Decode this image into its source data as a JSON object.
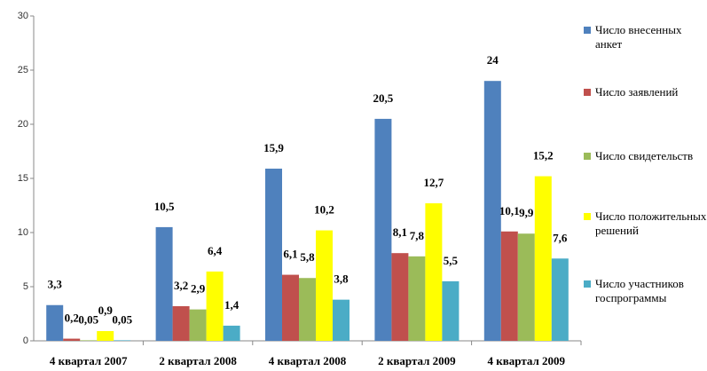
{
  "chart_data": {
    "type": "bar",
    "categories": [
      "4 квартал 2007",
      "2 квартал 2008",
      "4 квартал 2008",
      "2 квартал 2009",
      "4 квартал 2009"
    ],
    "series": [
      {
        "name": "Число внесенных анкет",
        "color": "#4f81bd",
        "values": [
          3.3,
          10.5,
          15.9,
          20.5,
          24
        ],
        "value_labels": [
          "3,3",
          "10,5",
          "15,9",
          "20,5",
          "24"
        ]
      },
      {
        "name": "Число заявлений",
        "color": "#c0504d",
        "values": [
          0.2,
          3.2,
          6.1,
          8.1,
          10.1
        ],
        "value_labels": [
          "0,2",
          "3,2",
          "6,1",
          "8,1",
          "10,1"
        ]
      },
      {
        "name": "Число свидетельств",
        "color": "#9bbb59",
        "values": [
          0.05,
          2.9,
          5.8,
          7.8,
          9.9
        ],
        "value_labels": [
          "0,05",
          "2,9",
          "5,8",
          "7,8",
          "9,9"
        ]
      },
      {
        "name": "Число положительных решений",
        "color": "#ffff00",
        "values": [
          0.9,
          6.4,
          10.2,
          12.7,
          15.2
        ],
        "value_labels": [
          "0,9",
          "6,4",
          "10,2",
          "12,7",
          "15,2"
        ]
      },
      {
        "name": "Число участников госпрограммы",
        "color": "#4bacc6",
        "values": [
          0.05,
          1.4,
          3.8,
          5.5,
          7.6
        ],
        "value_labels": [
          "0,05",
          "1,4",
          "3,8",
          "5,5",
          "7,6"
        ]
      }
    ],
    "ylim": [
      0,
      30
    ],
    "yticks": [
      0,
      5,
      10,
      15,
      20,
      25,
      30
    ],
    "grid": false,
    "legend": "right"
  }
}
